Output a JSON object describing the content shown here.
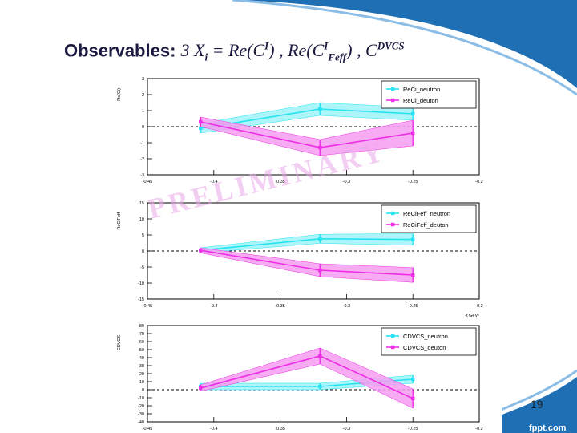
{
  "slide": {
    "title_lead": "Observables: ",
    "title_math_a": "3 X",
    "title_math_a_sub": "i",
    "title_math_b": " = Re(C",
    "title_math_b_sup": "I",
    "title_math_c": ") ,  Re(C",
    "title_math_c_sup": "I",
    "title_math_c_sub": "Feff",
    "title_math_d": ") , C",
    "title_math_d_sup": "DVCS",
    "page_number": "19",
    "logo": "fppt.com",
    "watermark": "PRELIMINARY"
  },
  "colors": {
    "neutron": "#27e3f0",
    "deuton": "#ee2ee6",
    "swoosh": "#1f6fb5",
    "band_neutron": "#9df3f8",
    "band_deuton": "#f59cf0"
  },
  "chart_data": [
    {
      "type": "line",
      "ylabel": "Re(Ci)",
      "x_unit": "",
      "xlim": [
        -0.45,
        -0.2
      ],
      "ylim": [
        -3,
        3
      ],
      "x_ticks": [
        -0.45,
        -0.4,
        -0.35,
        -0.3,
        -0.25,
        -0.2
      ],
      "x_tick_labels": [
        "-0.45",
        "-0.4",
        "-0.35",
        "-0.3",
        "-0.25",
        "-0.2"
      ],
      "y_ticks": [
        -3,
        -2,
        -1,
        0,
        1,
        2,
        3
      ],
      "y_tick_labels": [
        "-3",
        "-2",
        "-1",
        "0",
        "1",
        "2",
        "3"
      ],
      "reference_line": 0,
      "legend": "top-right",
      "series": [
        {
          "name": "ReCi_neutron",
          "color_key": "neutron",
          "x": [
            -0.41,
            -0.32,
            -0.25
          ],
          "y": [
            -0.1,
            1.1,
            0.8
          ],
          "err": [
            0.3,
            0.4,
            0.4
          ]
        },
        {
          "name": "ReCi_deuton",
          "color_key": "deuton",
          "x": [
            -0.41,
            -0.32,
            -0.25
          ],
          "y": [
            0.3,
            -1.3,
            -0.4
          ],
          "err": [
            0.3,
            0.5,
            0.8
          ]
        }
      ]
    },
    {
      "type": "line",
      "ylabel": "ReCiFeff",
      "x_unit": "-t GeV²",
      "xlim": [
        -0.45,
        -0.2
      ],
      "ylim": [
        -15,
        15
      ],
      "x_ticks": [
        -0.45,
        -0.4,
        -0.35,
        -0.3,
        -0.25,
        -0.2
      ],
      "x_tick_labels": [
        "-0.45",
        "-0.4",
        "-0.35",
        "-0.3",
        "-0.25",
        "-0.2"
      ],
      "y_ticks": [
        -15,
        -10,
        -5,
        0,
        5,
        10,
        15
      ],
      "y_tick_labels": [
        "-15",
        "-10",
        "-5",
        "0",
        "5",
        "10",
        "15"
      ],
      "reference_line": 0,
      "legend": "top-right",
      "series": [
        {
          "name": "ReCiFeff_neutron",
          "color_key": "neutron",
          "x": [
            -0.41,
            -0.32,
            -0.25
          ],
          "y": [
            0.2,
            3.8,
            3.6
          ],
          "err": [
            0.8,
            1.4,
            1.8
          ]
        },
        {
          "name": "ReCiFeff_deuton",
          "color_key": "deuton",
          "x": [
            -0.41,
            -0.32,
            -0.25
          ],
          "y": [
            0.2,
            -6.0,
            -7.5
          ],
          "err": [
            0.8,
            2.0,
            2.3
          ]
        }
      ]
    },
    {
      "type": "line",
      "ylabel": "CDVCS",
      "x_unit": "",
      "xlim": [
        -0.45,
        -0.2
      ],
      "ylim": [
        -40,
        80
      ],
      "x_ticks": [
        -0.45,
        -0.4,
        -0.35,
        -0.3,
        -0.25,
        -0.2
      ],
      "x_tick_labels": [
        "-0.45",
        "-0.4",
        "-0.35",
        "-0.3",
        "-0.25",
        "-0.2"
      ],
      "y_ticks": [
        -40,
        -30,
        -20,
        -10,
        0,
        10,
        20,
        30,
        40,
        50,
        60,
        70,
        80
      ],
      "y_tick_labels": [
        "-40",
        "-30",
        "-20",
        "-10",
        "0",
        "10",
        "20",
        "30",
        "40",
        "50",
        "60",
        "70",
        "80"
      ],
      "reference_line": 0,
      "legend": "top-right",
      "series": [
        {
          "name": "CDVCS_neutron",
          "color_key": "neutron",
          "x": [
            -0.41,
            -0.32,
            -0.25
          ],
          "y": [
            4,
            4,
            13
          ],
          "err": [
            4,
            4,
            5
          ]
        },
        {
          "name": "CDVCS_deuton",
          "color_key": "deuton",
          "x": [
            -0.41,
            -0.32,
            -0.25
          ],
          "y": [
            2,
            42,
            -11
          ],
          "err": [
            4,
            10,
            12
          ]
        }
      ]
    }
  ]
}
